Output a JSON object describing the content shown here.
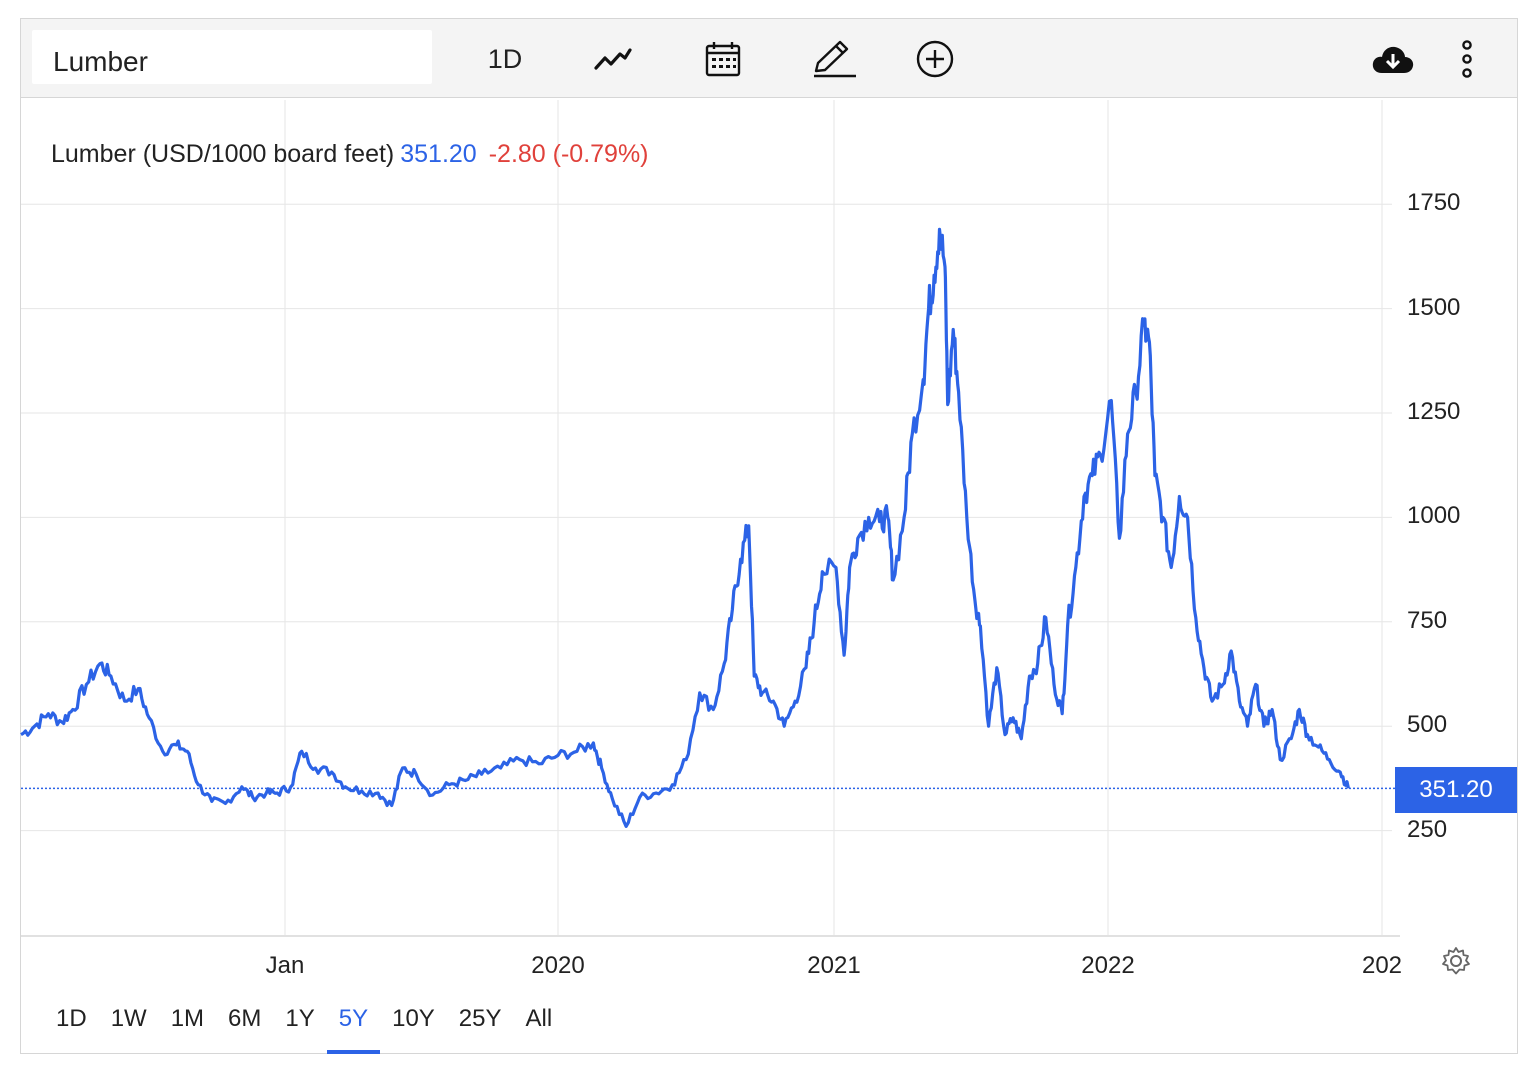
{
  "toolbar": {
    "search_value": "Lumber",
    "interval_label": "1D",
    "icons": [
      "line-chart-icon",
      "calendar-icon",
      "pencil-icon",
      "plus-circle-icon",
      "cloud-download-icon",
      "more-vertical-icon"
    ]
  },
  "legend": {
    "name": "Lumber (USD/1000 board feet)",
    "price": "351.20",
    "change": "-2.80 (-0.79%)"
  },
  "price_tag": "351.20",
  "ranges": [
    "1D",
    "1W",
    "1M",
    "6M",
    "1Y",
    "5Y",
    "10Y",
    "25Y",
    "All"
  ],
  "active_range": "5Y",
  "colors": {
    "line": "#2c63e6",
    "change_negative": "#e0413b",
    "grid": "#e6e6e6"
  },
  "chart_data": {
    "type": "line",
    "title": "Lumber (USD/1000 board feet)",
    "y_ticks": [
      "1750",
      "1500",
      "1250",
      "1000",
      "750",
      "500",
      "250"
    ],
    "x_ticks": [
      "Jan",
      "2020",
      "2021",
      "2022",
      "202"
    ],
    "ylim": [
      0,
      1975
    ],
    "xlim": [
      2018.03,
      2023.06
    ],
    "y_axis_position": "right",
    "grid": true,
    "last_value": 351.2,
    "series": [
      {
        "values": [
          [
            2018.03,
            480
          ],
          [
            2018.08,
            500
          ],
          [
            2018.13,
            530
          ],
          [
            2018.18,
            510
          ],
          [
            2018.22,
            540
          ],
          [
            2018.27,
            600
          ],
          [
            2018.32,
            650
          ],
          [
            2018.36,
            620
          ],
          [
            2018.41,
            560
          ],
          [
            2018.46,
            590
          ],
          [
            2018.5,
            520
          ],
          [
            2018.55,
            440
          ],
          [
            2018.6,
            455
          ],
          [
            2018.64,
            440
          ],
          [
            2018.68,
            360
          ],
          [
            2018.73,
            320
          ],
          [
            2018.78,
            315
          ],
          [
            2018.84,
            355
          ],
          [
            2018.88,
            330
          ],
          [
            2018.93,
            340
          ],
          [
            2018.97,
            340
          ],
          [
            2019.02,
            355
          ],
          [
            2019.06,
            440
          ],
          [
            2019.11,
            400
          ],
          [
            2019.17,
            390
          ],
          [
            2019.22,
            355
          ],
          [
            2019.28,
            345
          ],
          [
            2019.34,
            340
          ],
          [
            2019.39,
            310
          ],
          [
            2019.43,
            400
          ],
          [
            2019.48,
            385
          ],
          [
            2019.54,
            335
          ],
          [
            2019.6,
            360
          ],
          [
            2019.66,
            370
          ],
          [
            2019.72,
            385
          ],
          [
            2019.79,
            400
          ],
          [
            2019.86,
            420
          ],
          [
            2019.93,
            410
          ],
          [
            2020.0,
            430
          ],
          [
            2020.07,
            440
          ],
          [
            2020.13,
            460
          ],
          [
            2020.16,
            400
          ],
          [
            2020.2,
            325
          ],
          [
            2020.25,
            260
          ],
          [
            2020.3,
            330
          ],
          [
            2020.36,
            340
          ],
          [
            2020.42,
            360
          ],
          [
            2020.47,
            420
          ],
          [
            2020.52,
            580
          ],
          [
            2020.57,
            540
          ],
          [
            2020.61,
            650
          ],
          [
            2020.64,
            780
          ],
          [
            2020.67,
            900
          ],
          [
            2020.7,
            980
          ],
          [
            2020.72,
            620
          ],
          [
            2020.75,
            580
          ],
          [
            2020.79,
            560
          ],
          [
            2020.83,
            500
          ],
          [
            2020.87,
            560
          ],
          [
            2020.91,
            640
          ],
          [
            2020.94,
            750
          ],
          [
            2020.97,
            870
          ],
          [
            2021.02,
            880
          ],
          [
            2021.05,
            670
          ],
          [
            2021.07,
            880
          ],
          [
            2021.1,
            950
          ],
          [
            2021.14,
            1000
          ],
          [
            2021.18,
            990
          ],
          [
            2021.21,
            1000
          ],
          [
            2021.23,
            850
          ],
          [
            2021.27,
            1000
          ],
          [
            2021.3,
            1200
          ],
          [
            2021.34,
            1330
          ],
          [
            2021.36,
            1500
          ],
          [
            2021.38,
            1580
          ],
          [
            2021.4,
            1690
          ],
          [
            2021.42,
            1600
          ],
          [
            2021.43,
            1270
          ],
          [
            2021.45,
            1450
          ],
          [
            2021.47,
            1300
          ],
          [
            2021.5,
            1000
          ],
          [
            2021.53,
            800
          ],
          [
            2021.55,
            740
          ],
          [
            2021.58,
            500
          ],
          [
            2021.61,
            640
          ],
          [
            2021.64,
            480
          ],
          [
            2021.67,
            520
          ],
          [
            2021.7,
            470
          ],
          [
            2021.73,
            620
          ],
          [
            2021.76,
            650
          ],
          [
            2021.79,
            760
          ],
          [
            2021.82,
            600
          ],
          [
            2021.85,
            530
          ],
          [
            2021.87,
            740
          ],
          [
            2021.9,
            880
          ],
          [
            2021.93,
            1050
          ],
          [
            2021.96,
            1100
          ],
          [
            2021.99,
            1150
          ],
          [
            2022.03,
            1280
          ],
          [
            2022.06,
            950
          ],
          [
            2022.09,
            1200
          ],
          [
            2022.12,
            1300
          ],
          [
            2022.15,
            1460
          ],
          [
            2022.17,
            1420
          ],
          [
            2022.19,
            1100
          ],
          [
            2022.22,
            1000
          ],
          [
            2022.25,
            880
          ],
          [
            2022.28,
            1050
          ],
          [
            2022.31,
            1000
          ],
          [
            2022.34,
            760
          ],
          [
            2022.37,
            640
          ],
          [
            2022.4,
            560
          ],
          [
            2022.44,
            600
          ],
          [
            2022.47,
            680
          ],
          [
            2022.5,
            560
          ],
          [
            2022.53,
            500
          ],
          [
            2022.56,
            600
          ],
          [
            2022.59,
            500
          ],
          [
            2022.62,
            540
          ],
          [
            2022.65,
            420
          ],
          [
            2022.69,
            470
          ],
          [
            2022.72,
            540
          ],
          [
            2022.75,
            480
          ],
          [
            2022.79,
            450
          ],
          [
            2022.83,
            420
          ],
          [
            2022.87,
            390
          ],
          [
            2022.9,
            351.2
          ]
        ]
      }
    ]
  }
}
